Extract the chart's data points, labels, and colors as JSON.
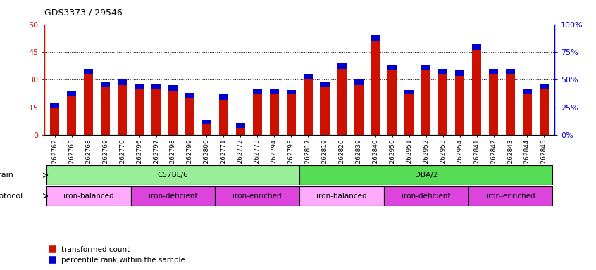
{
  "title": "GDS3373 / 29546",
  "samples": [
    "GSM262762",
    "GSM262765",
    "GSM262768",
    "GSM262769",
    "GSM262770",
    "GSM262796",
    "GSM262797",
    "GSM262798",
    "GSM262799",
    "GSM262800",
    "GSM262771",
    "GSM262772",
    "GSM262773",
    "GSM262794",
    "GSM262795",
    "GSM262817",
    "GSM262819",
    "GSM262820",
    "GSM262839",
    "GSM262840",
    "GSM262950",
    "GSM262951",
    "GSM262952",
    "GSM262953",
    "GSM262954",
    "GSM262841",
    "GSM262842",
    "GSM262843",
    "GSM262844",
    "GSM262845"
  ],
  "red_values": [
    14.5,
    21,
    33,
    26,
    27,
    25,
    25,
    24,
    20,
    6,
    19,
    4,
    22,
    22,
    22,
    30,
    26,
    36,
    27,
    51,
    35,
    22,
    35,
    33,
    32,
    46,
    33,
    33,
    22,
    25
  ],
  "blue_values": [
    2.5,
    3,
    3,
    2.5,
    3,
    3,
    3,
    3,
    3,
    2.5,
    3,
    2.5,
    3,
    3,
    2.5,
    3,
    3,
    3,
    3,
    3,
    3,
    2.5,
    3,
    3,
    3,
    3,
    3,
    3,
    3,
    3
  ],
  "ylim_left": [
    0,
    60
  ],
  "ylim_right": [
    0,
    100
  ],
  "yticks_left": [
    0,
    15,
    30,
    45,
    60
  ],
  "yticks_right": [
    0,
    25,
    50,
    75,
    100
  ],
  "ytick_labels_left": [
    "0",
    "15",
    "30",
    "45",
    "60"
  ],
  "ytick_labels_right": [
    "0%",
    "25%",
    "50%",
    "75%",
    "100%"
  ],
  "bar_color_red": "#CC1100",
  "bar_color_blue": "#0000CC",
  "strain_groups": [
    {
      "label": "C57BL/6",
      "start": 0,
      "end": 15,
      "color": "#99EE99"
    },
    {
      "label": "DBA/2",
      "start": 15,
      "end": 30,
      "color": "#55DD55"
    }
  ],
  "protocol_groups": [
    {
      "label": "iron-balanced",
      "start": 0,
      "end": 5,
      "color": "#FFAAFF"
    },
    {
      "label": "iron-deficient",
      "start": 5,
      "end": 10,
      "color": "#DD44DD"
    },
    {
      "label": "iron-enriched",
      "start": 10,
      "end": 15,
      "color": "#DD44DD"
    },
    {
      "label": "iron-balanced",
      "start": 15,
      "end": 20,
      "color": "#FFAAFF"
    },
    {
      "label": "iron-deficient",
      "start": 20,
      "end": 25,
      "color": "#DD44DD"
    },
    {
      "label": "iron-enriched",
      "start": 25,
      "end": 30,
      "color": "#DD44DD"
    }
  ]
}
